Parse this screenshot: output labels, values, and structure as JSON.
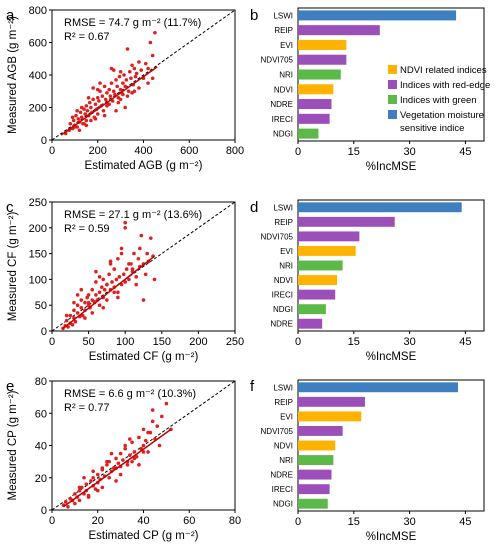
{
  "colors": {
    "points": "#e02020",
    "fit_line": "#c00000",
    "one_to_one": "#000000",
    "ndvi": "#ffb300",
    "rededge": "#9b4fb8",
    "green": "#5cb848",
    "moisture": "#3f7fbf"
  },
  "legend": {
    "items": [
      {
        "label": "NDVI related indices",
        "color": "#ffb300"
      },
      {
        "label": "Indices with red-edge",
        "color": "#9b4fb8"
      },
      {
        "label": "Indices with green",
        "color": "#5cb848"
      },
      {
        "label": "Vegetation moisture",
        "label2": "sensitive indice",
        "color": "#3f7fbf"
      }
    ]
  },
  "chart_data": [
    {
      "panel": "a",
      "type": "scatter",
      "xlabel": "Estimated AGB (g m⁻²)",
      "ylabel": "Measured AGB (g m⁻²)",
      "xlim": [
        0,
        800
      ],
      "ylim": [
        0,
        800
      ],
      "xticks": [
        0,
        200,
        400,
        600,
        800
      ],
      "yticks": [
        0,
        200,
        400,
        600,
        800
      ],
      "annotation_line1": "RMSE = 74.7 g m⁻² (11.7%)",
      "annotation_line2": "R² = 0.67",
      "fit": {
        "x": [
          40,
          460
        ],
        "y": [
          30,
          450
        ]
      },
      "one_to_one": true,
      "points": {
        "x": [
          60,
          75,
          80,
          90,
          95,
          100,
          105,
          110,
          115,
          120,
          125,
          130,
          135,
          140,
          145,
          150,
          150,
          155,
          160,
          165,
          170,
          175,
          180,
          185,
          190,
          195,
          200,
          200,
          205,
          210,
          215,
          220,
          225,
          230,
          235,
          240,
          245,
          250,
          255,
          260,
          265,
          270,
          275,
          280,
          285,
          290,
          295,
          300,
          300,
          305,
          310,
          315,
          320,
          325,
          330,
          335,
          340,
          345,
          350,
          355,
          360,
          365,
          370,
          380,
          390,
          400,
          410,
          420,
          430,
          440,
          450,
          120,
          180,
          260,
          320,
          140,
          230,
          300,
          350,
          90,
          210,
          280,
          160,
          330,
          380,
          250,
          270,
          190,
          100,
          420,
          360,
          310,
          240,
          170,
          440,
          200,
          150,
          130,
          110,
          290
        ],
        "y": [
          40,
          60,
          100,
          70,
          120,
          90,
          150,
          80,
          130,
          110,
          170,
          140,
          100,
          190,
          160,
          120,
          210,
          180,
          150,
          230,
          200,
          170,
          250,
          140,
          220,
          190,
          260,
          160,
          240,
          300,
          210,
          270,
          180,
          330,
          250,
          290,
          220,
          310,
          270,
          350,
          240,
          300,
          280,
          370,
          330,
          260,
          390,
          310,
          420,
          290,
          350,
          400,
          330,
          370,
          560,
          300,
          420,
          380,
          460,
          340,
          440,
          390,
          410,
          480,
          430,
          380,
          470,
          440,
          600,
          520,
          660,
          60,
          320,
          440,
          200,
          100,
          150,
          250,
          290,
          140,
          350,
          180,
          260,
          270,
          320,
          220,
          430,
          130,
          80,
          350,
          300,
          280,
          210,
          120,
          380,
          310,
          90,
          200,
          180,
          230
        ]
      }
    },
    {
      "panel": "b",
      "type": "bar",
      "orientation": "horizontal",
      "xlabel": "%IncMSE",
      "xlim": [
        0,
        50
      ],
      "xticks": [
        0,
        15,
        30,
        45
      ],
      "categories": [
        "LSWI",
        "REIP",
        "EVI",
        "NDVI705",
        "NRI",
        "NDVI",
        "NDRE",
        "IRECI",
        "NDGI"
      ],
      "values": [
        42.5,
        22,
        13,
        13,
        11.5,
        9.5,
        9,
        8.5,
        5.5
      ],
      "groups": [
        "moisture",
        "rededge",
        "ndvi",
        "rededge",
        "green",
        "ndvi",
        "rededge",
        "rededge",
        "green"
      ]
    },
    {
      "panel": "c",
      "type": "scatter",
      "xlabel": "Estimated CF (g m⁻²)",
      "ylabel": "Measured CF (g m⁻²)",
      "xlim": [
        0,
        250
      ],
      "ylim": [
        0,
        250
      ],
      "xticks": [
        0,
        50,
        100,
        150,
        200,
        250
      ],
      "yticks": [
        0,
        50,
        100,
        150,
        200,
        250
      ],
      "annotation_line1": "RMSE = 27.1 g m⁻² (13.6%)",
      "annotation_line2": "R² = 0.59",
      "fit": {
        "x": [
          15,
          140
        ],
        "y": [
          5,
          145
        ]
      },
      "one_to_one": true,
      "points": {
        "x": [
          15,
          18,
          20,
          22,
          25,
          25,
          28,
          30,
          30,
          32,
          35,
          35,
          38,
          40,
          40,
          42,
          45,
          45,
          48,
          50,
          50,
          52,
          55,
          55,
          58,
          60,
          60,
          62,
          65,
          65,
          68,
          70,
          70,
          72,
          75,
          75,
          78,
          80,
          80,
          82,
          85,
          85,
          88,
          90,
          90,
          92,
          95,
          95,
          98,
          100,
          100,
          102,
          105,
          108,
          110,
          112,
          115,
          118,
          120,
          122,
          125,
          128,
          130,
          132,
          135,
          138,
          140,
          105,
          90,
          70,
          60,
          45,
          35,
          115,
          125,
          100,
          85,
          55,
          40,
          30,
          20,
          65,
          75,
          110,
          95,
          50,
          80,
          120
        ],
        "y": [
          5,
          10,
          20,
          8,
          15,
          30,
          12,
          25,
          40,
          18,
          35,
          50,
          28,
          45,
          60,
          30,
          55,
          40,
          65,
          50,
          70,
          45,
          60,
          80,
          55,
          70,
          95,
          60,
          75,
          50,
          85,
          65,
          100,
          80,
          90,
          60,
          110,
          80,
          130,
          95,
          85,
          120,
          100,
          75,
          140,
          105,
          90,
          160,
          110,
          95,
          200,
          120,
          100,
          130,
          115,
          150,
          105,
          140,
          125,
          185,
          130,
          110,
          150,
          135,
          180,
          145,
          100,
          130,
          65,
          45,
          115,
          25,
          70,
          90,
          60,
          210,
          75,
          35,
          80,
          55,
          30,
          105,
          90,
          120,
          150,
          55,
          135,
          160
        ]
      }
    },
    {
      "panel": "d",
      "type": "bar",
      "orientation": "horizontal",
      "xlabel": "%IncMSE",
      "xlim": [
        0,
        50
      ],
      "xticks": [
        0,
        15,
        30,
        45
      ],
      "categories": [
        "LSWI",
        "REIP",
        "NDVI705",
        "EVI",
        "NRI",
        "NDVI",
        "IRECI",
        "NDGI",
        "NDRE"
      ],
      "values": [
        44,
        26,
        16.5,
        15.5,
        12,
        10.5,
        10,
        7.5,
        6.5
      ],
      "groups": [
        "moisture",
        "rededge",
        "rededge",
        "ndvi",
        "green",
        "ndvi",
        "rededge",
        "green",
        "rededge"
      ]
    },
    {
      "panel": "e",
      "type": "scatter",
      "xlabel": "Estimated CP (g m⁻²)",
      "ylabel": "Measured CP (g m⁻²)",
      "xlim": [
        0,
        80
      ],
      "ylim": [
        0,
        80
      ],
      "xticks": [
        0,
        20,
        40,
        60,
        80
      ],
      "yticks": [
        0,
        20,
        40,
        60,
        80
      ],
      "annotation_line1": "RMSE = 6.6 g m⁻² (10.3%)",
      "annotation_line2": "R² = 0.77",
      "fit": {
        "x": [
          5,
          52
        ],
        "y": [
          2,
          50
        ]
      },
      "one_to_one": true,
      "points": {
        "x": [
          5,
          6,
          7,
          8,
          9,
          10,
          10,
          11,
          12,
          12,
          13,
          14,
          15,
          15,
          16,
          17,
          18,
          18,
          19,
          20,
          20,
          21,
          22,
          22,
          23,
          24,
          25,
          25,
          26,
          27,
          28,
          28,
          29,
          30,
          30,
          31,
          32,
          33,
          34,
          35,
          35,
          36,
          37,
          38,
          39,
          40,
          40,
          41,
          42,
          43,
          44,
          45,
          46,
          47,
          48,
          50,
          52,
          14,
          18,
          24,
          28,
          32,
          36,
          20,
          26,
          30,
          34,
          38,
          42,
          16,
          22,
          44,
          12,
          40,
          33
        ],
        "y": [
          3,
          5,
          2,
          7,
          6,
          4,
          10,
          8,
          12,
          6,
          14,
          10,
          16,
          12,
          9,
          18,
          15,
          20,
          13,
          22,
          17,
          19,
          25,
          14,
          21,
          28,
          20,
          30,
          24,
          26,
          32,
          18,
          29,
          35,
          27,
          31,
          38,
          28,
          34,
          30,
          42,
          36,
          33,
          45,
          38,
          40,
          50,
          43,
          36,
          48,
          55,
          44,
          52,
          40,
          58,
          66,
          50,
          20,
          24,
          30,
          26,
          40,
          32,
          12,
          35,
          22,
          44,
          28,
          48,
          8,
          26,
          62,
          14,
          36,
          30
        ]
      }
    },
    {
      "panel": "f",
      "type": "bar",
      "orientation": "horizontal",
      "xlabel": "%IncMSE",
      "xlim": [
        0,
        50
      ],
      "xticks": [
        0,
        15,
        30,
        45
      ],
      "categories": [
        "LSWI",
        "REIP",
        "EVI",
        "NDVI705",
        "NDVI",
        "NRI",
        "NDRE",
        "IRECI",
        "NDGI"
      ],
      "values": [
        43,
        18,
        17,
        12,
        10,
        9.5,
        9,
        8.5,
        8
      ],
      "groups": [
        "moisture",
        "rededge",
        "ndvi",
        "rededge",
        "ndvi",
        "green",
        "rededge",
        "rededge",
        "green"
      ]
    }
  ]
}
